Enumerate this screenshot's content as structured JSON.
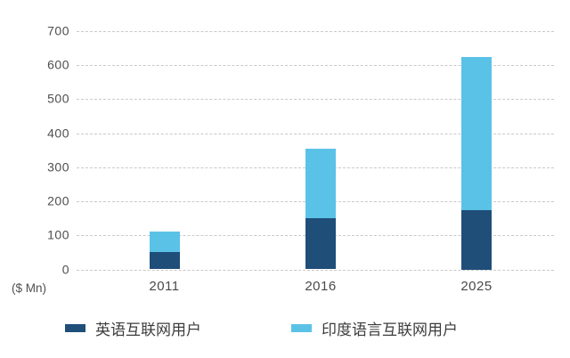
{
  "chart_data": {
    "type": "bar",
    "stacked": true,
    "title": "",
    "unit_label": "($ Mn)",
    "categories": [
      "2011",
      "2016",
      "2025"
    ],
    "series": [
      {
        "name": "英语互联网用户",
        "color": "#1F4E79",
        "values": [
          50,
          150,
          175
        ]
      },
      {
        "name": "印度语言互联网用户",
        "color": "#5BC2E7",
        "values": [
          60,
          205,
          450
        ]
      }
    ],
    "totals": [
      110,
      355,
      625
    ],
    "ylim": [
      0,
      700
    ],
    "ytick_step": 100,
    "yticks": [
      0,
      100,
      200,
      300,
      400,
      500,
      600,
      700
    ],
    "grid": "horizontal-dashed",
    "gridline_color": "#c9c9c9",
    "legend_position": "bottom",
    "xlabel": "",
    "ylabel": ""
  }
}
